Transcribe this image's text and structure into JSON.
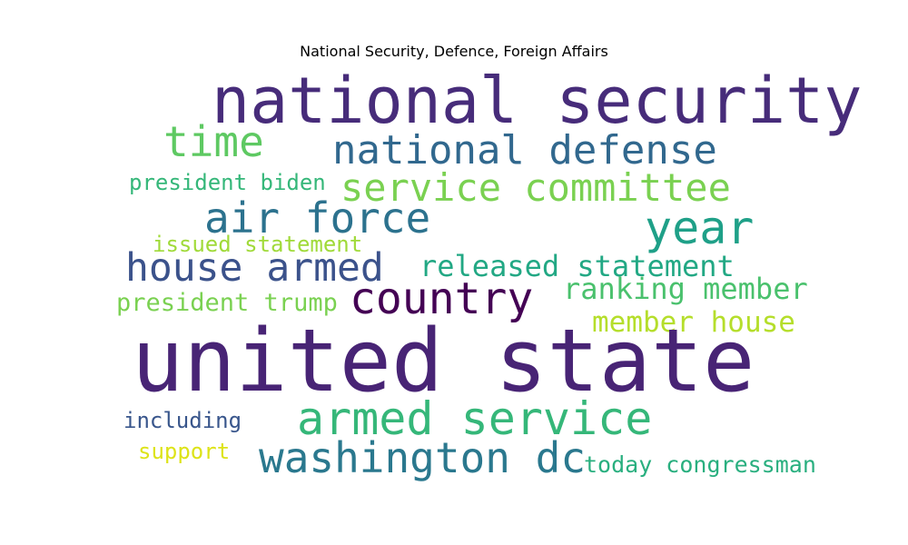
{
  "chart_data": {
    "type": "wordcloud",
    "title": "National Security, Defence, Foreign Affairs",
    "words": [
      {
        "text": "national security",
        "color": "#472c7a"
      },
      {
        "text": "time",
        "color": "#5ec962"
      },
      {
        "text": "national defense",
        "color": "#31688e"
      },
      {
        "text": "service committee",
        "color": "#7ad151"
      },
      {
        "text": "president biden",
        "color": "#35b779"
      },
      {
        "text": "air force",
        "color": "#2c728e"
      },
      {
        "text": "year",
        "color": "#1fa088"
      },
      {
        "text": "issued statement",
        "color": "#a0da39"
      },
      {
        "text": "house armed",
        "color": "#3b528b"
      },
      {
        "text": "released statement",
        "color": "#22a884"
      },
      {
        "text": "country",
        "color": "#440154"
      },
      {
        "text": "ranking member",
        "color": "#4ac16d"
      },
      {
        "text": "president trump",
        "color": "#7ad151"
      },
      {
        "text": "member house",
        "color": "#b5de2b"
      },
      {
        "text": "united state",
        "color": "#482475"
      },
      {
        "text": "armed service",
        "color": "#35b779"
      },
      {
        "text": "including",
        "color": "#39568c"
      },
      {
        "text": "support",
        "color": "#dde318"
      },
      {
        "text": "washington dc",
        "color": "#2a788e"
      },
      {
        "text": "today congressman",
        "color": "#29af7f"
      }
    ]
  }
}
